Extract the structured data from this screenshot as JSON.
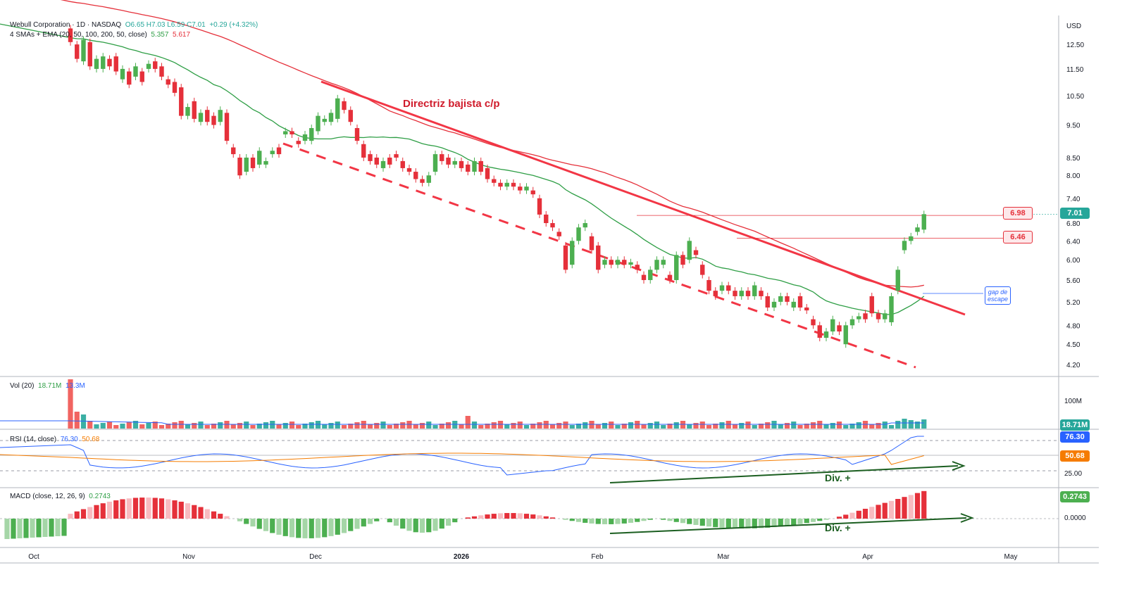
{
  "header": {
    "symbol": "Webull Corporation · 1D · NASDAQ",
    "ohlc": "O6.65  H7.03  L6.59  C7.01",
    "change": "+0.29 (+4.32%)",
    "ma_label": "4 SMAs + EMA (20, 50, 100, 200, 50, close)",
    "ma_val1": "5.357",
    "ma_val2": "5.617",
    "currency": "USD"
  },
  "panes": {
    "volume": {
      "label": "Vol (20)",
      "v1": "18.71M",
      "v2": "13.3M",
      "axis_tick": "100M",
      "last_label": "18.71M"
    },
    "rsi": {
      "label": "RSI (14, close)",
      "v1": "76.30",
      "v2": "50.68",
      "axis_tick": "25.00",
      "last_rsi": "76.30",
      "last_ma": "50.68",
      "divergence": "Div. +"
    },
    "macd": {
      "label": "MACD (close, 12, 26, 9)",
      "v1": "0.2743",
      "axis_tick": "0.0000",
      "last_label": "0.2743",
      "divergence": "Div. +"
    }
  },
  "annotations": {
    "trendline": "Directriz bajista c/p",
    "level1": "6.98",
    "level2": "6.46",
    "last_price": "7.01",
    "gap_line1": "gap de",
    "gap_line2": "escape"
  },
  "colors": {
    "up": "#26a69a",
    "down": "#ef5350",
    "candle_up": "#4caf50",
    "candle_down": "#e5303a",
    "sma20": "#2e9e45",
    "sma50": "#e5303a",
    "rsi": "#2962ff",
    "rsi_ma": "#f57c00",
    "trend": "#f23645"
  },
  "chart_data": {
    "type": "candlestick",
    "price_axis": {
      "ticks": [
        12.5,
        11.5,
        10.5,
        9.5,
        8.5,
        8.0,
        7.4,
        6.8,
        6.4,
        6.0,
        5.6,
        5.2,
        4.8,
        4.5,
        4.2
      ],
      "scale": "log"
    },
    "x_labels": [
      "Oct",
      "Nov",
      "Dec",
      "2026",
      "Feb",
      "Mar",
      "Apr",
      "May"
    ],
    "candles": [
      [
        13.2,
        12.6
      ],
      [
        12.5,
        11.9
      ],
      [
        11.8,
        12.7
      ],
      [
        12.6,
        11.6
      ],
      [
        11.5,
        11.9
      ],
      [
        11.5,
        12.0
      ],
      [
        11.9,
        11.6
      ],
      [
        12.0,
        11.4
      ],
      [
        11.1,
        11.5
      ],
      [
        11.4,
        10.9
      ],
      [
        11.2,
        11.6
      ],
      [
        11.4,
        11.0
      ],
      [
        11.5,
        11.7
      ],
      [
        11.8,
        11.5
      ],
      [
        11.6,
        11.2
      ],
      [
        11.1,
        10.9
      ],
      [
        11.0,
        10.6
      ],
      [
        10.8,
        9.8
      ],
      [
        9.8,
        10.1
      ],
      [
        10.3,
        9.7
      ],
      [
        9.6,
        9.9
      ],
      [
        10.0,
        9.6
      ],
      [
        9.8,
        9.5
      ],
      [
        9.6,
        10.0
      ],
      [
        9.9,
        9.0
      ],
      [
        8.8,
        8.6
      ],
      [
        8.5,
        8.0
      ],
      [
        8.1,
        8.5
      ],
      [
        8.5,
        8.2
      ],
      [
        8.3,
        8.7
      ],
      [
        8.3,
        8.4
      ],
      [
        8.6,
        8.7
      ],
      [
        8.8,
        8.6
      ],
      [
        9.2,
        9.3
      ],
      [
        9.3,
        9.2
      ],
      [
        9.0,
        8.9
      ],
      [
        9.0,
        9.2
      ],
      [
        9.0,
        9.4
      ],
      [
        9.3,
        9.8
      ],
      [
        9.6,
        9.7
      ],
      [
        9.6,
        9.9
      ],
      [
        9.7,
        10.4
      ],
      [
        10.3,
        10.0
      ],
      [
        10.0,
        9.6
      ],
      [
        9.4,
        9.0
      ],
      [
        8.9,
        8.5
      ],
      [
        8.6,
        8.4
      ],
      [
        8.5,
        8.3
      ],
      [
        8.2,
        8.4
      ],
      [
        8.5,
        8.3
      ],
      [
        8.6,
        8.5
      ],
      [
        8.4,
        8.2
      ],
      [
        8.2,
        8.1
      ],
      [
        8.1,
        7.9
      ],
      [
        7.9,
        7.8
      ],
      [
        7.8,
        8.0
      ],
      [
        8.1,
        8.6
      ],
      [
        8.6,
        8.4
      ],
      [
        8.5,
        8.3
      ],
      [
        8.3,
        8.4
      ],
      [
        8.4,
        8.2
      ],
      [
        8.3,
        8.1
      ],
      [
        8.1,
        8.4
      ],
      [
        8.4,
        8.1
      ],
      [
        8.2,
        7.9
      ],
      [
        7.9,
        7.8
      ],
      [
        7.8,
        7.7
      ],
      [
        7.7,
        7.8
      ],
      [
        7.8,
        7.7
      ],
      [
        7.7,
        7.6
      ],
      [
        7.6,
        7.7
      ],
      [
        7.6,
        7.5
      ],
      [
        7.4,
        7.0
      ],
      [
        7.0,
        6.8
      ],
      [
        6.8,
        6.7
      ],
      [
        6.6,
        6.5
      ],
      [
        6.3,
        5.8
      ],
      [
        5.9,
        6.4
      ],
      [
        6.4,
        6.7
      ],
      [
        6.7,
        6.8
      ],
      [
        6.5,
        6.2
      ],
      [
        6.3,
        5.8
      ],
      [
        5.9,
        6.0
      ],
      [
        6.0,
        5.9
      ],
      [
        5.9,
        6.0
      ],
      [
        6.0,
        5.9
      ],
      [
        5.9,
        5.95
      ],
      [
        5.9,
        5.8
      ],
      [
        5.7,
        5.6
      ],
      [
        5.6,
        5.8
      ],
      [
        5.8,
        6.0
      ],
      [
        5.9,
        6.0
      ],
      [
        5.7,
        5.6
      ],
      [
        5.6,
        6.1
      ],
      [
        6.1,
        5.9
      ],
      [
        6.0,
        6.4
      ],
      [
        6.2,
        6.1
      ],
      [
        5.9,
        5.7
      ],
      [
        5.6,
        5.4
      ],
      [
        5.4,
        5.3
      ],
      [
        5.4,
        5.5
      ],
      [
        5.5,
        5.4
      ],
      [
        5.4,
        5.3
      ],
      [
        5.3,
        5.4
      ],
      [
        5.4,
        5.3
      ],
      [
        5.3,
        5.5
      ],
      [
        5.4,
        5.3
      ],
      [
        5.3,
        5.1
      ],
      [
        5.1,
        5.2
      ],
      [
        5.2,
        5.3
      ],
      [
        5.3,
        5.2
      ],
      [
        5.1,
        5.2
      ],
      [
        5.3,
        5.1
      ],
      [
        5.1,
        5.05
      ],
      [
        4.9,
        4.8
      ],
      [
        4.8,
        4.6
      ],
      [
        4.6,
        4.7
      ],
      [
        4.7,
        4.9
      ],
      [
        4.8,
        4.7
      ],
      [
        4.5,
        4.8
      ],
      [
        4.8,
        4.9
      ],
      [
        4.9,
        4.95
      ],
      [
        5.0,
        4.9
      ],
      [
        5.3,
        5.0
      ],
      [
        5.0,
        4.9
      ],
      [
        4.9,
        5.0
      ],
      [
        4.85,
        5.3
      ],
      [
        5.4,
        5.8
      ],
      [
        6.2,
        6.4
      ],
      [
        6.4,
        6.5
      ],
      [
        6.6,
        6.7
      ],
      [
        6.65,
        7.01
      ]
    ],
    "levels": [
      6.98,
      6.46
    ],
    "last_close": 7.01,
    "volume_label": "18.71M",
    "rsi_last": 76.3,
    "rsi_ma_last": 50.68,
    "macd_last": 0.2743
  }
}
